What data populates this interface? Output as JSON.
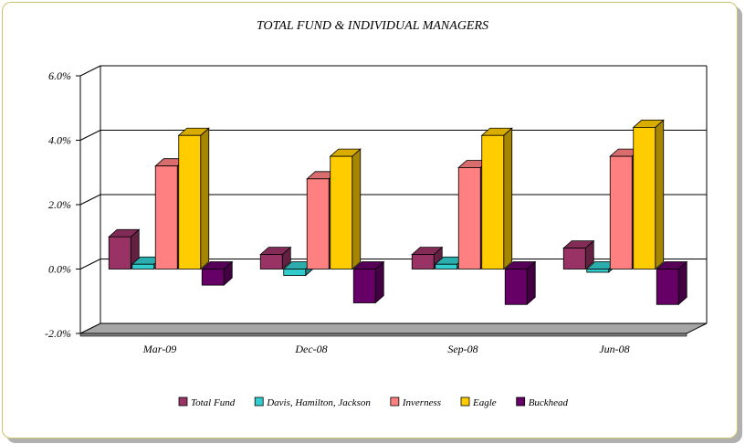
{
  "chart_data": {
    "type": "bar",
    "title": "TOTAL FUND  & INDIVIDUAL MANAGERS",
    "xlabel": "",
    "ylabel": "",
    "categories": [
      "Mar-09",
      "Dec-08",
      "Sep-08",
      "Jun-08"
    ],
    "ylim": [
      -2.0,
      6.0
    ],
    "yticks": [
      "6.0%",
      "4.0%",
      "2.0%",
      "0.0%",
      "-2.0%"
    ],
    "ytick_values": [
      6.0,
      4.0,
      2.0,
      0.0,
      -2.0
    ],
    "grid": true,
    "legend_position": "bottom",
    "series": [
      {
        "name": "Total Fund",
        "color": "#993366",
        "values": [
          1.0,
          0.45,
          0.45,
          0.65
        ]
      },
      {
        "name": "Davis, Hamilton, Jackson",
        "color": "#33CCCC",
        "values": [
          0.15,
          -0.2,
          0.15,
          -0.1
        ]
      },
      {
        "name": "Inverness",
        "color": "#FF8080",
        "values": [
          3.2,
          2.8,
          3.15,
          3.5
        ]
      },
      {
        "name": "Eagle",
        "color": "#FFCC00",
        "values": [
          4.15,
          3.5,
          4.15,
          4.4
        ]
      },
      {
        "name": "Buckhead",
        "color": "#660066",
        "values": [
          -0.5,
          -1.05,
          -1.1,
          -1.1
        ]
      }
    ]
  }
}
